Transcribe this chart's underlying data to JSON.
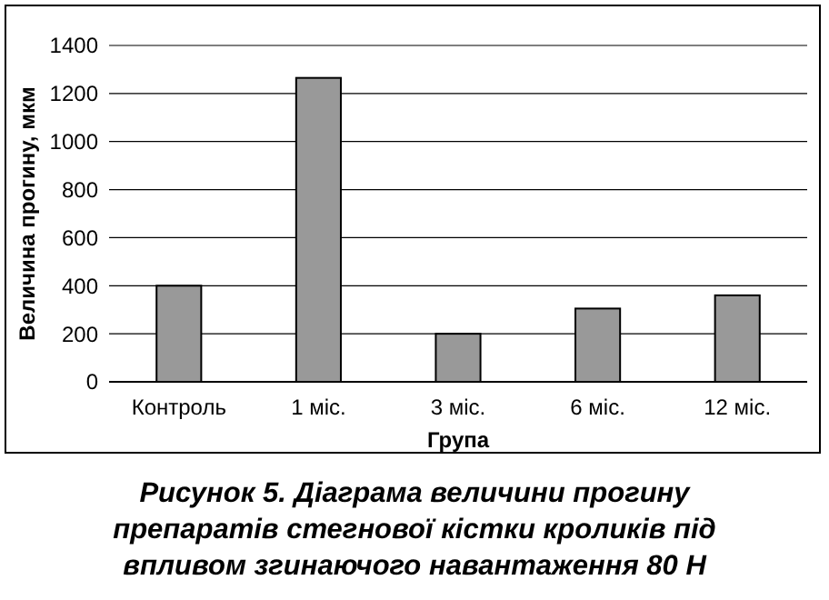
{
  "chart_data": {
    "type": "bar",
    "title": "Рисунок 5. Діаграма величини прогину препаратів стегнової кістки кроликів під впливом згинаючого навантаження 80 Н",
    "categories": [
      "Контроль",
      "1 міс.",
      "3 міс.",
      "6 міс.",
      "12 міс."
    ],
    "values": [
      400,
      1265,
      200,
      305,
      360
    ],
    "color": "#999999",
    "xlabel": "Група",
    "ylabel": "Величина прогину, мкм",
    "ylim": [
      0,
      1400
    ],
    "yticks": [
      0,
      200,
      400,
      600,
      800,
      1000,
      1200,
      1400
    ],
    "grid": "y"
  }
}
